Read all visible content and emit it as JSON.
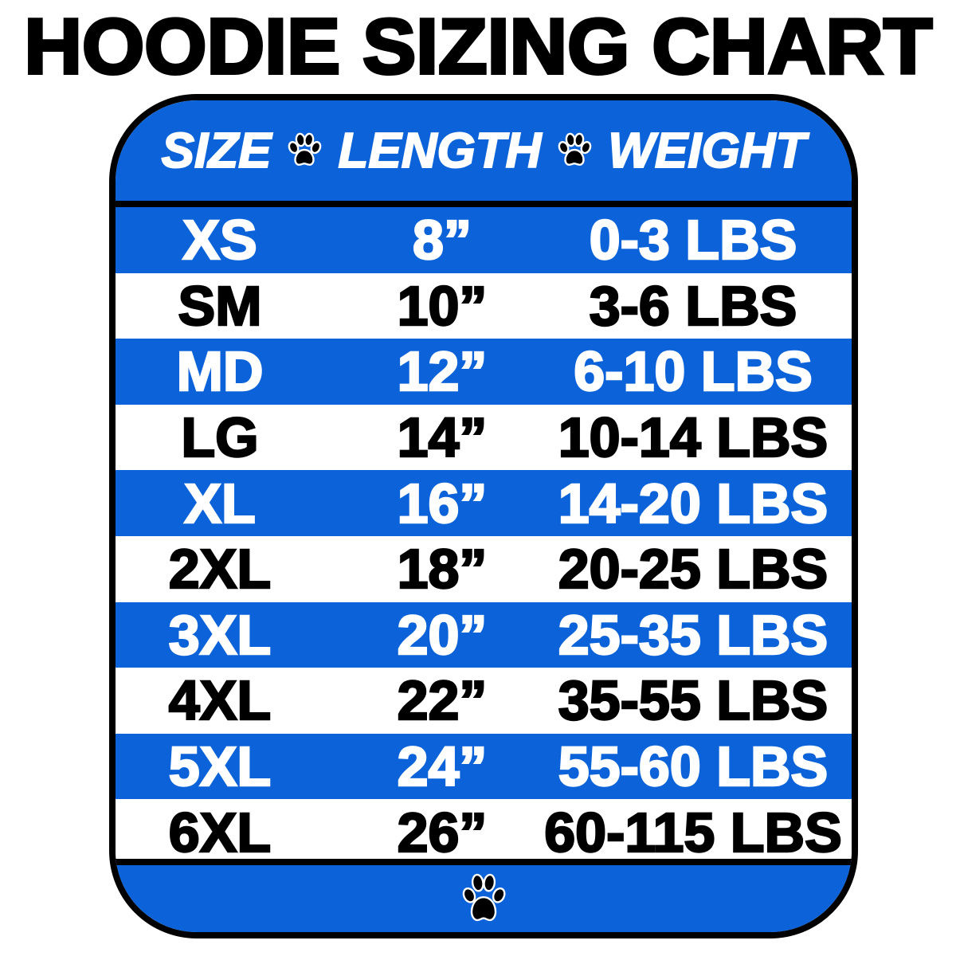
{
  "title": "HOODIE SIZING CHART",
  "colors": {
    "blue": "#0c63d9",
    "white": "#ffffff",
    "black": "#000000"
  },
  "header": {
    "size": "SIZE",
    "length": "LENGTH",
    "weight": "WEIGHT",
    "separator_icon": "paw-print-icon"
  },
  "rows": [
    {
      "size": "XS",
      "length": "8”",
      "weight": "0-3 LBS"
    },
    {
      "size": "SM",
      "length": "10”",
      "weight": "3-6 LBS"
    },
    {
      "size": "MD",
      "length": "12”",
      "weight": "6-10 LBS"
    },
    {
      "size": "LG",
      "length": "14”",
      "weight": "10-14 LBS"
    },
    {
      "size": "XL",
      "length": "16”",
      "weight": "14-20 LBS"
    },
    {
      "size": "2XL",
      "length": "18”",
      "weight": "20-25 LBS"
    },
    {
      "size": "3XL",
      "length": "20”",
      "weight": "25-35 LBS"
    },
    {
      "size": "4XL",
      "length": "22”",
      "weight": "35-55 LBS"
    },
    {
      "size": "5XL",
      "length": "24”",
      "weight": "55-60 LBS"
    },
    {
      "size": "6XL",
      "length": "26”",
      "weight": "60-115 LBS"
    }
  ],
  "footer_icon": "paw-print-icon"
}
